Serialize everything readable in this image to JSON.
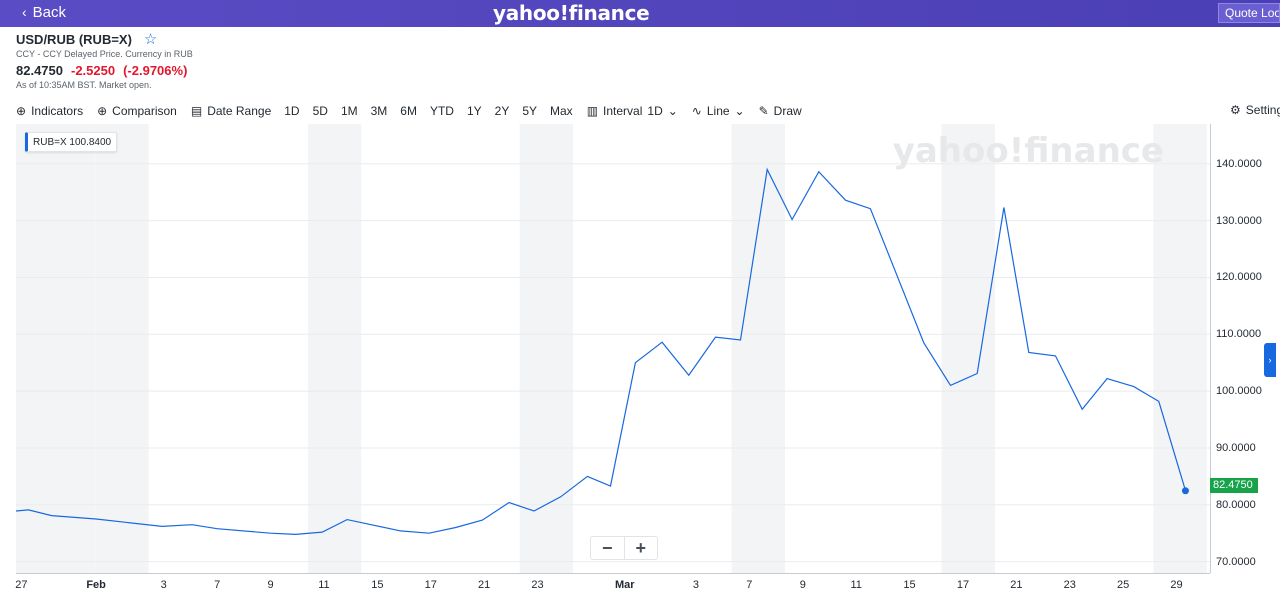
{
  "topbar": {
    "back_label": "Back",
    "logo": "yahoo!finance",
    "quote_lookup_label": "Quote Lookup"
  },
  "header": {
    "symbol": "USD/RUB (RUB=X)",
    "subtitle": "CCY - CCY Delayed Price. Currency in RUB",
    "price": "82.4750",
    "change": "-2.5250",
    "change_pct": "(-2.9706%)",
    "as_of": "As of 10:35AM BST. Market open."
  },
  "toolbar": {
    "indicators": "Indicators",
    "comparison": "Comparison",
    "date_range": "Date Range",
    "ranges": [
      "1D",
      "5D",
      "1M",
      "3M",
      "6M",
      "YTD",
      "1Y",
      "2Y",
      "5Y",
      "Max"
    ],
    "interval_label": "Interval",
    "interval_value": "1D",
    "chart_type": "Line",
    "draw": "Draw",
    "settings": "Settings"
  },
  "legend": {
    "symbol": "RUB=X",
    "value": "100.8400"
  },
  "last_price_label": "82.4750",
  "watermark": "yahoo!finance",
  "colors": {
    "line": "#1868e0",
    "brand": "#4b3fb5",
    "negative": "#e0182d",
    "last_price_bg": "#16a34a"
  },
  "chart_data": {
    "type": "line",
    "ylim": [
      68.0,
      147.0
    ],
    "yticks": [
      "140.0000",
      "130.0000",
      "120.0000",
      "110.0000",
      "100.0000",
      "90.0000",
      "80.0000",
      "70.0000"
    ],
    "ytick_values": [
      140,
      130,
      120,
      110,
      100,
      90,
      80,
      70
    ],
    "x_labels": [
      {
        "label": "27",
        "idx": 0.3,
        "bold": false
      },
      {
        "label": "Feb",
        "idx": 4.5,
        "bold": true
      },
      {
        "label": "3",
        "idx": 8.3,
        "bold": false
      },
      {
        "label": "7",
        "idx": 11.3,
        "bold": false
      },
      {
        "label": "9",
        "idx": 14.3,
        "bold": false
      },
      {
        "label": "11",
        "idx": 17.3,
        "bold": false
      },
      {
        "label": "15",
        "idx": 20.3,
        "bold": false
      },
      {
        "label": "17",
        "idx": 23.3,
        "bold": false
      },
      {
        "label": "21",
        "idx": 26.3,
        "bold": false
      },
      {
        "label": "23",
        "idx": 29.3,
        "bold": false
      },
      {
        "label": "Mar",
        "idx": 34.2,
        "bold": true
      },
      {
        "label": "3",
        "idx": 38.2,
        "bold": false
      },
      {
        "label": "7",
        "idx": 41.2,
        "bold": false
      },
      {
        "label": "9",
        "idx": 44.2,
        "bold": false
      },
      {
        "label": "11",
        "idx": 47.2,
        "bold": false
      },
      {
        "label": "15",
        "idx": 50.2,
        "bold": false
      },
      {
        "label": "17",
        "idx": 53.2,
        "bold": false
      },
      {
        "label": "21",
        "idx": 56.2,
        "bold": false
      },
      {
        "label": "23",
        "idx": 59.2,
        "bold": false
      },
      {
        "label": "25",
        "idx": 62.2,
        "bold": false
      },
      {
        "label": "29",
        "idx": 65.2,
        "bold": false
      }
    ],
    "x_count": 67,
    "series": [
      {
        "points": [
          [
            0,
            78.9
          ],
          [
            0.7,
            79.1
          ],
          [
            2,
            78.1
          ],
          [
            4.5,
            77.5
          ],
          [
            8.2,
            76.2
          ],
          [
            9.9,
            76.5
          ],
          [
            11.3,
            75.8
          ],
          [
            14.3,
            75.0
          ],
          [
            15.7,
            74.8
          ],
          [
            17.2,
            75.2
          ],
          [
            18.6,
            77.4
          ],
          [
            21.6,
            75.4
          ],
          [
            23.2,
            75.0
          ],
          [
            24.7,
            76.0
          ],
          [
            26.2,
            77.3
          ],
          [
            27.7,
            80.4
          ],
          [
            29.1,
            78.9
          ],
          [
            30.6,
            81.4
          ],
          [
            32.1,
            85.0
          ],
          [
            33.4,
            83.3
          ],
          [
            34.8,
            105.0
          ],
          [
            36.3,
            108.6
          ],
          [
            37.8,
            102.8
          ],
          [
            39.3,
            109.5
          ],
          [
            40.7,
            109.0
          ],
          [
            42.2,
            139.0
          ],
          [
            43.6,
            130.2
          ],
          [
            45.1,
            138.6
          ],
          [
            46.6,
            133.6
          ],
          [
            48.0,
            132.1
          ],
          [
            51.0,
            108.5
          ],
          [
            52.5,
            101.0
          ],
          [
            54.0,
            103.1
          ],
          [
            55.5,
            132.3
          ],
          [
            56.9,
            106.8
          ],
          [
            58.4,
            106.2
          ],
          [
            59.9,
            96.8
          ],
          [
            61.3,
            102.2
          ],
          [
            62.8,
            100.8
          ],
          [
            64.2,
            98.2
          ],
          [
            65.7,
            82.475
          ]
        ]
      }
    ]
  }
}
